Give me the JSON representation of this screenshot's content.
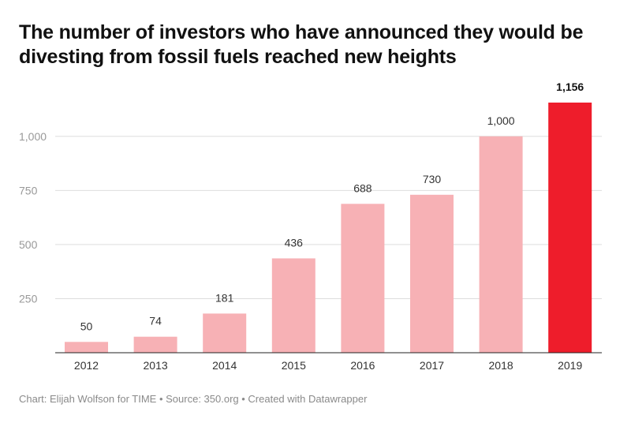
{
  "title": "The number of investors who have announced they would be divesting from fossil fuels reached new heights",
  "footer": "Chart: Elijah Wolfson for TIME • Source: 350.org • Created with Datawrapper",
  "chart_data": {
    "type": "bar",
    "title": "The number of investors who have announced they would be divesting from fossil fuels reached new heights",
    "xlabel": "",
    "ylabel": "",
    "categories": [
      "2012",
      "2013",
      "2014",
      "2015",
      "2016",
      "2017",
      "2018",
      "2019"
    ],
    "values": [
      50,
      74,
      181,
      436,
      688,
      730,
      1000,
      1156
    ],
    "value_labels": [
      "50",
      "74",
      "181",
      "436",
      "688",
      "730",
      "1,000",
      "1,156"
    ],
    "highlight_index": 7,
    "ylim": [
      0,
      1156
    ],
    "yticks": [
      250,
      500,
      750,
      1000
    ],
    "ytick_labels": [
      "250",
      "500",
      "750",
      "1,000"
    ],
    "grid": true,
    "legend": "none",
    "colors": {
      "bar": "#f7b1b5",
      "highlight": "#ee1d2b",
      "grid": "#dddddd",
      "axis": "#222222",
      "tick_text": "#999999",
      "label_text": "#333333"
    }
  }
}
